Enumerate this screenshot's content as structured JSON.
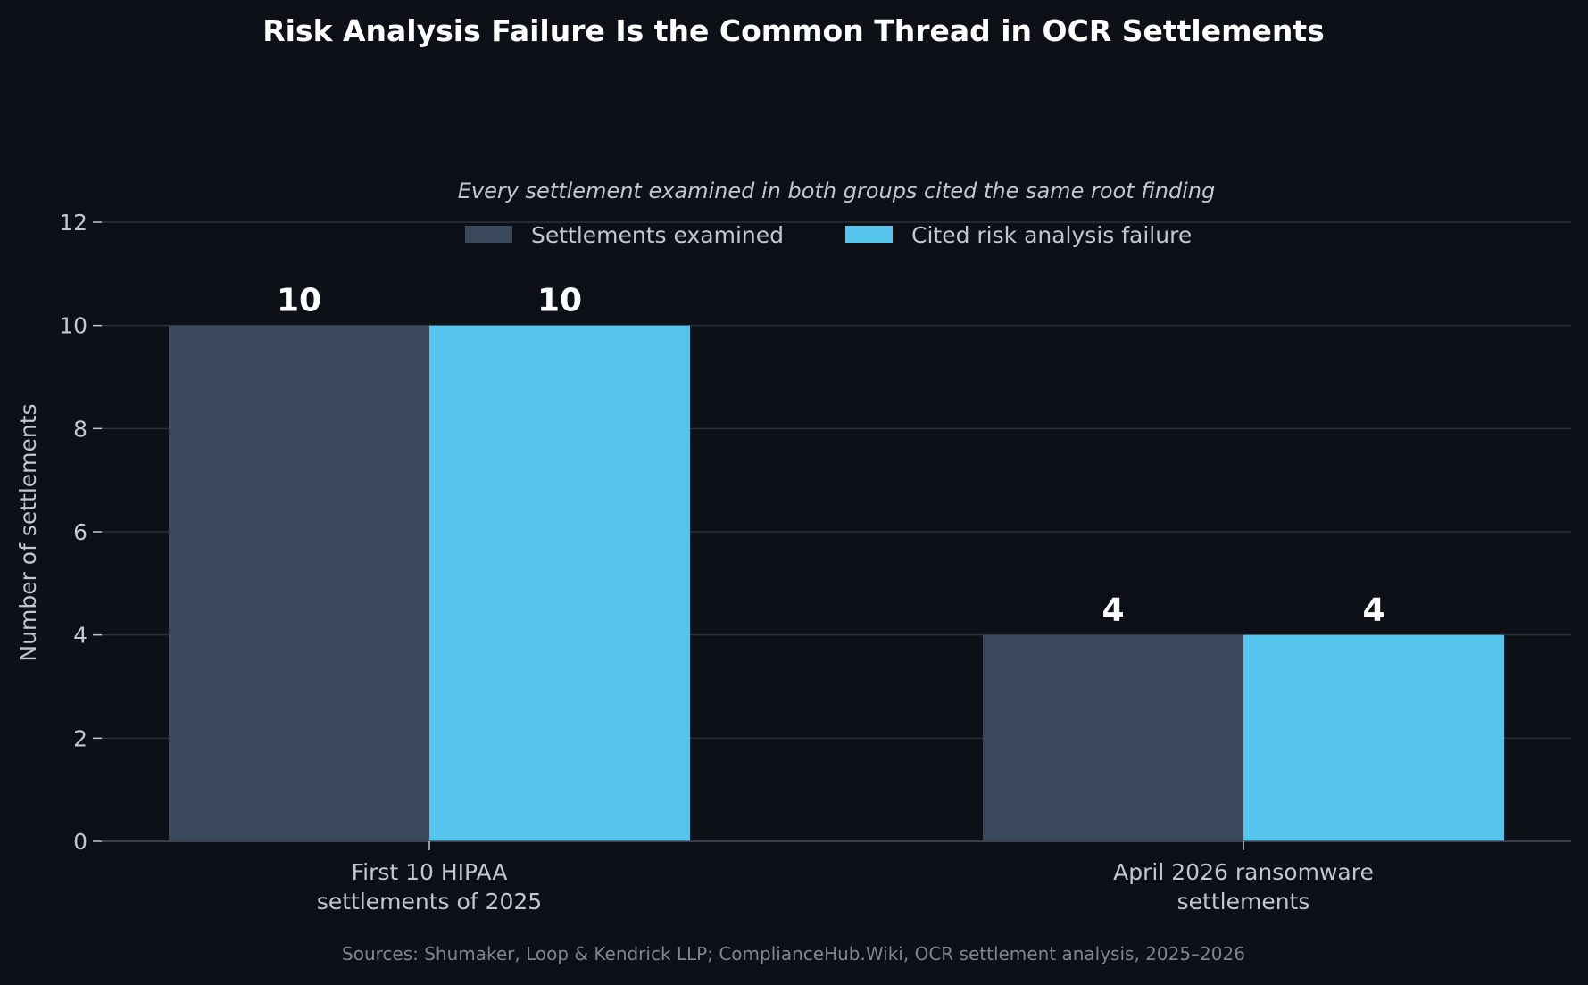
{
  "chart_data": {
    "type": "bar",
    "title": "Risk Analysis Failure Is the Common Thread in OCR Settlements",
    "subtitle": "Every settlement examined in both groups cited the same root finding",
    "ylabel": "Number of settlements",
    "xlabel": "",
    "ylim": [
      0,
      12
    ],
    "yticks": [
      0,
      2,
      4,
      6,
      8,
      10,
      12
    ],
    "grid": true,
    "legend_position": "top-center",
    "categories": [
      [
        "First 10 HIPAA",
        "settlements of 2025"
      ],
      [
        "April 2026 ransomware",
        "settlements"
      ]
    ],
    "series": [
      {
        "name": "Settlements examined",
        "values": [
          10,
          4
        ],
        "color": "#3a4a5c"
      },
      {
        "name": "Cited risk analysis failure",
        "values": [
          10,
          4
        ],
        "color": "#55c5ed"
      }
    ],
    "data_labels": [
      [
        "10",
        "4"
      ],
      [
        "10",
        "4"
      ]
    ],
    "source": "Sources: Shumaker, Loop & Kendrick LLP; ComplianceHub.Wiki, OCR settlement analysis, 2025–2026"
  },
  "colors": {
    "background": "#0d1017",
    "grid": "#2c3038",
    "axis": "#444a55",
    "text": "#c2c7d0"
  }
}
